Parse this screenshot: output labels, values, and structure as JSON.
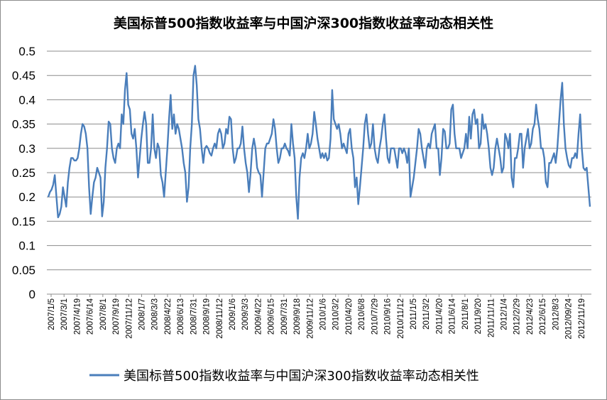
{
  "chart_data": {
    "type": "line",
    "title": "美国标普500指数收益率与中国沪深300指数收益率动态相关性",
    "xlabel": "",
    "ylabel": "",
    "ylim": [
      0,
      0.5
    ],
    "yticks": [
      "0",
      "0.05",
      "0.1",
      "0.15",
      "0.2",
      "0.25",
      "0.3",
      "0.35",
      "0.4",
      "0.45",
      "0.5"
    ],
    "xtick_labels": [
      "2007/1/5",
      "2007/3/1",
      "2007/4/19",
      "2007/6/14",
      "2007/8/1",
      "2007/9/19",
      "2007/11/12",
      "2008/1/7",
      "2008/3/3",
      "2008/4/22",
      "2008/6/13",
      "2008/7/31",
      "2008/9/19",
      "2008/11/12",
      "2009/1/6",
      "2009/3/3",
      "2009/4/22",
      "2009/6/15",
      "2009/7/31",
      "2009/9/18",
      "2009/11/12",
      "2010/1/6",
      "2010/3/2",
      "2010/4/20",
      "2010/6/8",
      "2010/7/29",
      "2010/9/16",
      "2010/11/12",
      "2011/1/5",
      "2011/3/2",
      "2011/4/20",
      "2011/6/14",
      "2011/8/1",
      "2011/9/20",
      "2011/11/11",
      "2012/1/4",
      "2012/2/29",
      "2012/4/23",
      "2012/6/15",
      "2012/8/3",
      "2012/09/24",
      "2012/11/19"
    ],
    "grid": true,
    "legend_position": "bottom",
    "series": [
      {
        "name": "美国标普500指数收益率与中国沪深300指数收益率动态相关性",
        "color": "#4a7ebb",
        "values": [
          0.2,
          0.21,
          0.215,
          0.225,
          0.245,
          0.2,
          0.158,
          0.165,
          0.18,
          0.22,
          0.2,
          0.18,
          0.23,
          0.26,
          0.28,
          0.28,
          0.275,
          0.275,
          0.28,
          0.3,
          0.33,
          0.35,
          0.345,
          0.33,
          0.3,
          0.22,
          0.165,
          0.2,
          0.23,
          0.24,
          0.26,
          0.25,
          0.24,
          0.16,
          0.19,
          0.26,
          0.3,
          0.355,
          0.35,
          0.3,
          0.28,
          0.27,
          0.3,
          0.31,
          0.3,
          0.37,
          0.35,
          0.42,
          0.455,
          0.39,
          0.38,
          0.33,
          0.32,
          0.34,
          0.3,
          0.24,
          0.28,
          0.32,
          0.35,
          0.375,
          0.35,
          0.27,
          0.27,
          0.3,
          0.37,
          0.3,
          0.28,
          0.31,
          0.3,
          0.245,
          0.23,
          0.2,
          0.25,
          0.3,
          0.36,
          0.41,
          0.34,
          0.37,
          0.33,
          0.35,
          0.34,
          0.32,
          0.3,
          0.27,
          0.25,
          0.19,
          0.22,
          0.3,
          0.35,
          0.45,
          0.47,
          0.43,
          0.36,
          0.34,
          0.3,
          0.27,
          0.3,
          0.305,
          0.3,
          0.29,
          0.285,
          0.3,
          0.31,
          0.3,
          0.33,
          0.34,
          0.33,
          0.3,
          0.31,
          0.34,
          0.33,
          0.365,
          0.36,
          0.3,
          0.27,
          0.28,
          0.3,
          0.3,
          0.31,
          0.345,
          0.3,
          0.27,
          0.25,
          0.21,
          0.25,
          0.3,
          0.32,
          0.3,
          0.26,
          0.25,
          0.245,
          0.2,
          0.25,
          0.3,
          0.31,
          0.31,
          0.32,
          0.33,
          0.36,
          0.34,
          0.3,
          0.27,
          0.28,
          0.3,
          0.3,
          0.31,
          0.3,
          0.295,
          0.285,
          0.35,
          0.31,
          0.28,
          0.2,
          0.155,
          0.24,
          0.28,
          0.29,
          0.28,
          0.3,
          0.33,
          0.3,
          0.31,
          0.33,
          0.375,
          0.35,
          0.32,
          0.3,
          0.28,
          0.29,
          0.28,
          0.29,
          0.275,
          0.28,
          0.32,
          0.42,
          0.36,
          0.35,
          0.34,
          0.35,
          0.33,
          0.3,
          0.31,
          0.3,
          0.29,
          0.33,
          0.34,
          0.3,
          0.28,
          0.22,
          0.24,
          0.185,
          0.22,
          0.26,
          0.3,
          0.35,
          0.37,
          0.33,
          0.3,
          0.31,
          0.35,
          0.3,
          0.28,
          0.27,
          0.3,
          0.32,
          0.35,
          0.37,
          0.32,
          0.28,
          0.27,
          0.3,
          0.3,
          0.3,
          0.28,
          0.26,
          0.3,
          0.3,
          0.29,
          0.3,
          0.29,
          0.27,
          0.3,
          0.2,
          0.22,
          0.24,
          0.27,
          0.3,
          0.34,
          0.33,
          0.3,
          0.28,
          0.26,
          0.3,
          0.31,
          0.3,
          0.33,
          0.34,
          0.35,
          0.3,
          0.3,
          0.245,
          0.28,
          0.34,
          0.335,
          0.3,
          0.3,
          0.31,
          0.38,
          0.39,
          0.33,
          0.3,
          0.3,
          0.3,
          0.28,
          0.29,
          0.3,
          0.33,
          0.3,
          0.365,
          0.32,
          0.37,
          0.38,
          0.35,
          0.36,
          0.3,
          0.31,
          0.37,
          0.34,
          0.35,
          0.33,
          0.3,
          0.26,
          0.245,
          0.26,
          0.3,
          0.32,
          0.3,
          0.28,
          0.25,
          0.26,
          0.33,
          0.32,
          0.3,
          0.33,
          0.24,
          0.22,
          0.28,
          0.28,
          0.3,
          0.33,
          0.33,
          0.26,
          0.3,
          0.32,
          0.34,
          0.3,
          0.31,
          0.34,
          0.35,
          0.39,
          0.36,
          0.34,
          0.3,
          0.3,
          0.28,
          0.23,
          0.22,
          0.27,
          0.27,
          0.28,
          0.29,
          0.27,
          0.3,
          0.35,
          0.4,
          0.435,
          0.35,
          0.3,
          0.28,
          0.265,
          0.26,
          0.28,
          0.28,
          0.29,
          0.28,
          0.33,
          0.37,
          0.3,
          0.26,
          0.255,
          0.26,
          0.22,
          0.18
        ]
      }
    ]
  }
}
